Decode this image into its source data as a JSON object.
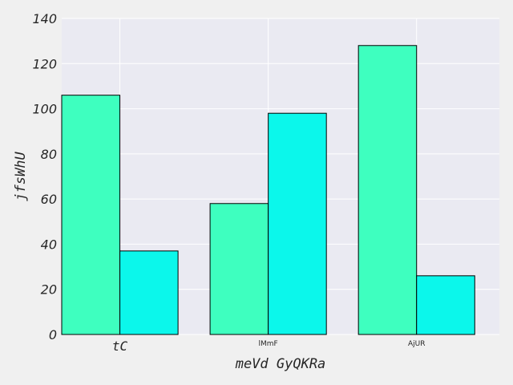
{
  "chart_data": {
    "type": "bar",
    "title": "",
    "xlabel": "meVd  GyQKRa",
    "ylabel": "jfsWhU",
    "categories": [
      "tC",
      "lMmF",
      "AjUR"
    ],
    "series": [
      {
        "values": [
          106,
          58,
          128
        ],
        "color": "#3effbf"
      },
      {
        "values": [
          37,
          98,
          26
        ],
        "color": "#0bf7eb"
      }
    ],
    "ylim": [
      0,
      140
    ],
    "yticks": [
      0,
      20,
      40,
      60,
      80,
      100,
      120,
      140
    ],
    "grid": true,
    "legend": "none",
    "plot_background": "#eaeaf2",
    "figure_background": "#f0f0f0"
  }
}
